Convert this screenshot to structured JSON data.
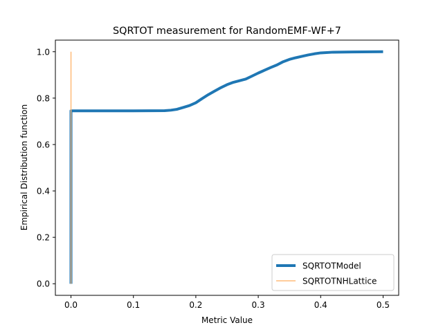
{
  "chart_data": {
    "type": "line",
    "title": "SQRTOT measurement for RandomEMF-WF+7",
    "xlabel": "Metric Value",
    "ylabel": "Empirical Distribution function",
    "xlim": [
      -0.025,
      0.525
    ],
    "ylim": [
      -0.05,
      1.05
    ],
    "xticks": [
      0.0,
      0.1,
      0.2,
      0.3,
      0.4,
      0.5
    ],
    "xtick_labels": [
      "0.0",
      "0.1",
      "0.2",
      "0.3",
      "0.4",
      "0.5"
    ],
    "yticks": [
      0.0,
      0.2,
      0.4,
      0.6,
      0.8,
      1.0
    ],
    "ytick_labels": [
      "0.0",
      "0.2",
      "0.4",
      "0.6",
      "0.8",
      "1.0"
    ],
    "grid": false,
    "legend_position": "lower right",
    "series": [
      {
        "name": "SQRTOTModel",
        "color": "#1f77b4",
        "style": "thick",
        "x": [
          0.0,
          0.0,
          0.0,
          0.05,
          0.1,
          0.15,
          0.16,
          0.17,
          0.18,
          0.19,
          0.2,
          0.21,
          0.22,
          0.23,
          0.24,
          0.25,
          0.26,
          0.27,
          0.28,
          0.29,
          0.3,
          0.31,
          0.32,
          0.33,
          0.34,
          0.35,
          0.36,
          0.37,
          0.38,
          0.39,
          0.4,
          0.42,
          0.45,
          0.5
        ],
        "y": [
          0.0,
          0.743,
          0.745,
          0.745,
          0.745,
          0.746,
          0.748,
          0.752,
          0.76,
          0.768,
          0.78,
          0.798,
          0.815,
          0.83,
          0.845,
          0.858,
          0.868,
          0.875,
          0.882,
          0.895,
          0.908,
          0.92,
          0.932,
          0.943,
          0.957,
          0.967,
          0.974,
          0.98,
          0.986,
          0.991,
          0.995,
          0.998,
          0.999,
          1.0
        ]
      },
      {
        "name": "SQRTOTNHLattice",
        "color": "#ffbb78",
        "style": "thin",
        "x": [
          0.0,
          0.0
        ],
        "y": [
          0.0,
          1.0
        ]
      }
    ]
  }
}
